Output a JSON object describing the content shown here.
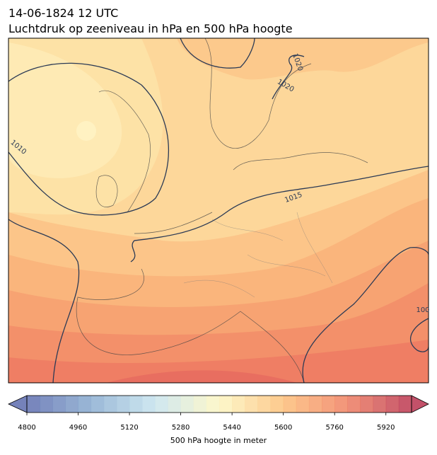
{
  "header": {
    "date": "14-06-1824 12 UTC",
    "title": "Luchtdruk op zeeniveau in hPa en 500 hPa hoogte"
  },
  "map": {
    "contour_labels": [
      "1010",
      "1015",
      "1020",
      "1020",
      "100"
    ]
  },
  "colorbar": {
    "label": "500 hPa hoogte in meter",
    "range": [
      4800,
      6000
    ],
    "step": 40,
    "ticks": [
      4800,
      4960,
      5120,
      5280,
      5440,
      5600,
      5760,
      5920
    ],
    "colors": [
      "#5d6cae",
      "#89acd0",
      "#c7e3ee",
      "#fdf7c2",
      "#fdbf79",
      "#f08062",
      "#b8334f"
    ]
  }
}
